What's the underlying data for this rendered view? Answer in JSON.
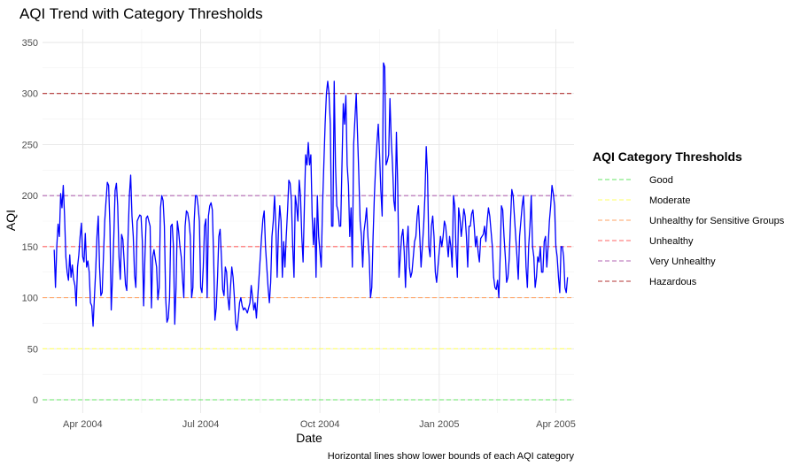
{
  "chart_data": {
    "type": "line",
    "title": "AQI Trend with Category Thresholds",
    "xlabel": "Date",
    "ylabel": "AQI",
    "caption": "Horizontal lines show lower bounds of each AQI category",
    "ylim": [
      -13,
      363
    ],
    "y_ticks": [
      0,
      50,
      100,
      150,
      200,
      250,
      300,
      350
    ],
    "x_range": [
      "2004-03-01",
      "2005-04-15"
    ],
    "x_ticks": [
      {
        "date": "2004-04-01",
        "label": "Apr 2004"
      },
      {
        "date": "2004-07-01",
        "label": "Jul 2004"
      },
      {
        "date": "2004-10-01",
        "label": "Oct 2004"
      },
      {
        "date": "2005-01-01",
        "label": "Jan 2005"
      },
      {
        "date": "2005-04-01",
        "label": "Apr 2005"
      }
    ],
    "grid": true,
    "series": [
      {
        "color": "#0000ff",
        "x_start": "2004-03-10",
        "x_step_days": 1,
        "values": [
          147,
          110,
          150,
          172,
          160,
          202,
          188,
          210,
          180,
          140,
          125,
          117,
          142,
          120,
          132,
          118,
          112,
          92,
          130,
          142,
          160,
          173,
          140,
          135,
          163,
          130,
          136,
          125,
          95,
          92,
          72,
          100,
          126,
          160,
          180,
          130,
          102,
          105,
          140,
          175,
          195,
          213,
          210,
          170,
          88,
          120,
          160,
          205,
          212,
          190,
          140,
          118,
          162,
          157,
          135,
          113,
          107,
          160,
          200,
          220,
          180,
          160,
          122,
          110,
          175,
          178,
          181,
          180,
          155,
          92,
          140,
          178,
          180,
          175,
          170,
          90,
          140,
          147,
          138,
          130,
          98,
          110,
          188,
          200,
          195,
          170,
          100,
          76,
          80,
          100,
          170,
          172,
          150,
          74,
          110,
          175,
          165,
          150,
          140,
          118,
          100,
          170,
          185,
          183,
          175,
          160,
          100,
          110,
          175,
          200,
          200,
          190,
          175,
          110,
          105,
          130,
          170,
          177,
          100,
          180,
          190,
          193,
          186,
          140,
          78,
          90,
          120,
          160,
          167,
          140,
          108,
          102,
          130,
          125,
          100,
          88,
          110,
          130,
          120,
          100,
          75,
          68,
          80,
          95,
          100,
          92,
          88,
          90,
          88,
          85,
          90,
          95,
          112,
          100,
          88,
          95,
          80,
          100,
          120,
          140,
          160,
          177,
          185,
          150,
          130,
          110,
          95,
          115,
          160,
          175,
          200,
          170,
          120,
          165,
          190,
          175,
          120,
          155,
          130,
          160,
          185,
          215,
          212,
          195,
          150,
          120,
          200,
          190,
          175,
          215,
          200,
          160,
          135,
          190,
          240,
          230,
          252,
          230,
          240,
          180,
          152,
          178,
          120,
          200,
          160,
          145,
          130,
          190,
          230,
          270,
          300,
          312,
          300,
          270,
          170,
          170,
          312,
          230,
          190,
          185,
          170,
          170,
          230,
          290,
          270,
          298,
          230,
          210,
          160,
          188,
          130,
          250,
          275,
          300,
          260,
          220,
          175,
          160,
          130,
          165,
          175,
          188,
          160,
          140,
          100,
          110,
          160,
          200,
          230,
          252,
          270,
          240,
          205,
          180,
          330,
          326,
          230,
          234,
          240,
          295,
          255,
          230,
          195,
          185,
          262,
          210,
          120,
          140,
          160,
          167,
          145,
          110,
          150,
          170,
          130,
          120,
          125,
          140,
          155,
          160,
          180,
          190,
          160,
          130,
          150,
          170,
          200,
          248,
          220,
          150,
          140,
          170,
          180,
          160,
          125,
          115,
          130,
          145,
          160,
          150,
          160,
          175,
          170,
          155,
          140,
          160,
          150,
          130,
          200,
          190,
          145,
          120,
          188,
          178,
          160,
          172,
          187,
          180,
          160,
          130,
          170,
          170,
          182,
          186,
          170,
          150,
          160,
          145,
          135,
          158,
          160,
          162,
          170,
          155,
          175,
          188,
          180,
          165,
          150,
          120,
          110,
          108,
          117,
          100,
          140,
          190,
          186,
          160,
          140,
          115,
          120,
          138,
          175,
          206,
          200,
          180,
          160,
          140,
          118,
          160,
          175,
          190,
          200,
          170,
          130,
          110,
          150,
          170,
          200,
          150,
          140,
          110,
          120,
          140,
          135,
          150,
          125,
          125,
          155,
          160,
          130,
          150,
          175,
          190,
          210,
          202,
          190,
          150,
          140,
          120,
          105,
          150,
          150,
          140,
          110,
          105,
          120
        ]
      }
    ],
    "thresholds": [
      {
        "label": "Good",
        "value": 0,
        "color": "#66e666"
      },
      {
        "label": "Moderate",
        "value": 50,
        "color": "#ffff66"
      },
      {
        "label": "Unhealthy for Sensitive Groups",
        "value": 100,
        "color": "#ffa366"
      },
      {
        "label": "Unhealthy",
        "value": 150,
        "color": "#ff6666"
      },
      {
        "label": "Very Unhealthy",
        "value": 200,
        "color": "#b366b3"
      },
      {
        "label": "Hazardous",
        "value": 300,
        "color": "#b33333"
      }
    ],
    "legend": {
      "title": "AQI Category Thresholds",
      "position": "right"
    }
  }
}
